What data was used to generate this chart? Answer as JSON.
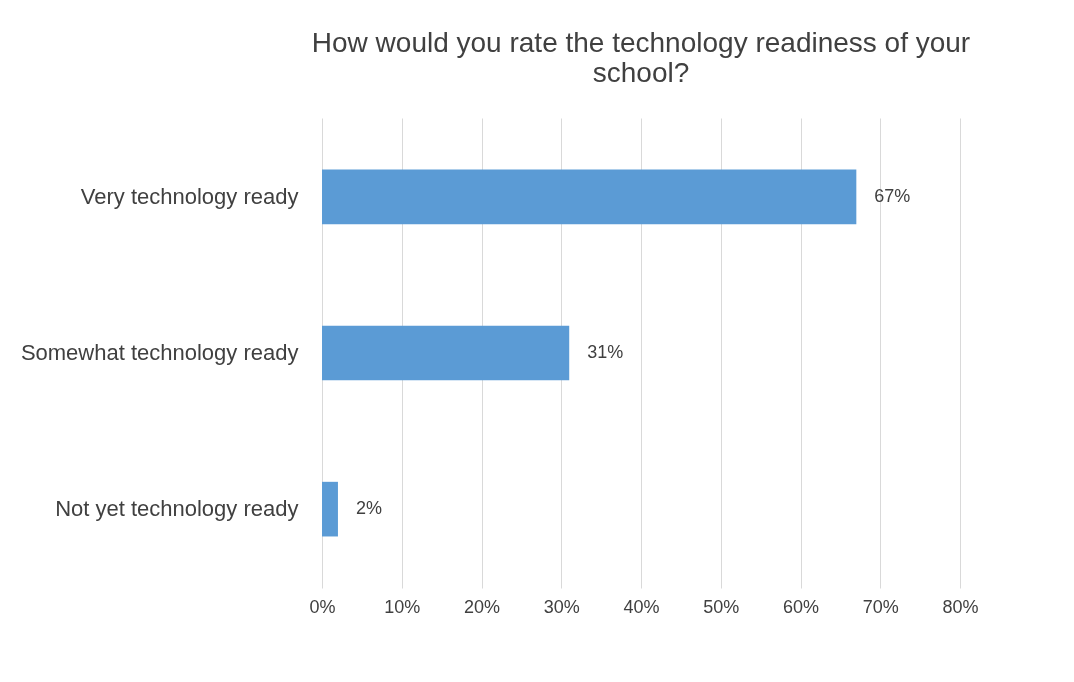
{
  "chart_data": {
    "type": "bar",
    "orientation": "horizontal",
    "title": "How would you rate the technology readiness of your school?",
    "categories": [
      "Very technology ready",
      "Somewhat technology ready",
      "Not yet technology ready"
    ],
    "values": [
      67,
      31,
      2
    ],
    "color": "#5b9bd5",
    "value_labels": [
      "67%",
      "31%",
      "2%"
    ],
    "xlim": [
      0,
      80
    ],
    "xticks": [
      {
        "value": 0,
        "label": "0%"
      },
      {
        "value": 10,
        "label": "10%"
      },
      {
        "value": 20,
        "label": "20%"
      },
      {
        "value": 30,
        "label": "30%"
      },
      {
        "value": 40,
        "label": "40%"
      },
      {
        "value": 50,
        "label": "50%"
      },
      {
        "value": 60,
        "label": "60%"
      },
      {
        "value": 70,
        "label": "70%"
      },
      {
        "value": 80,
        "label": "80%"
      }
    ],
    "grid": "x"
  }
}
